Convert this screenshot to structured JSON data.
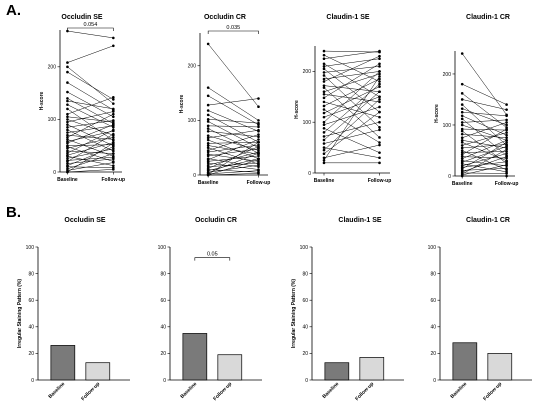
{
  "panel_labels": {
    "a": "A.",
    "b": "B."
  },
  "colors": {
    "line": "#000000",
    "baseline_bar": "#7a7a7a",
    "followup_bar": "#d9d9d9"
  },
  "chart_data": [
    {
      "type": "line",
      "panel": "A",
      "title": "Occludin SE",
      "ylabel": "H-score",
      "categories": [
        "Baseline",
        "Follow-up"
      ],
      "ylim": [
        0,
        270
      ],
      "yticks": [
        0,
        100,
        200
      ],
      "significance": "0.054",
      "pairs": [
        [
          268,
          255
        ],
        [
          208,
          240
        ],
        [
          200,
          130
        ],
        [
          190,
          138
        ],
        [
          170,
          118
        ],
        [
          152,
          105
        ],
        [
          140,
          92
        ],
        [
          135,
          120
        ],
        [
          128,
          85
        ],
        [
          120,
          60
        ],
        [
          110,
          142
        ],
        [
          105,
          95
        ],
        [
          100,
          70
        ],
        [
          95,
          115
        ],
        [
          90,
          50
        ],
        [
          85,
          98
        ],
        [
          80,
          40
        ],
        [
          75,
          88
        ],
        [
          70,
          62
        ],
        [
          66,
          110
        ],
        [
          62,
          30
        ],
        [
          58,
          78
        ],
        [
          55,
          90
        ],
        [
          50,
          52
        ],
        [
          48,
          20
        ],
        [
          45,
          66
        ],
        [
          40,
          35
        ],
        [
          36,
          80
        ],
        [
          32,
          56
        ],
        [
          30,
          12
        ],
        [
          26,
          44
        ],
        [
          22,
          28
        ],
        [
          20,
          72
        ],
        [
          16,
          25
        ],
        [
          12,
          48
        ],
        [
          10,
          8
        ],
        [
          6,
          35
        ],
        [
          3,
          18
        ],
        [
          0,
          55
        ],
        [
          0,
          5
        ]
      ]
    },
    {
      "type": "line",
      "panel": "A",
      "title": "Occludin CR",
      "ylabel": "H-score",
      "categories": [
        "Baseline",
        "Follow-up"
      ],
      "ylim": [
        0,
        260
      ],
      "yticks": [
        0,
        100,
        200
      ],
      "significance": "0.035",
      "pairs": [
        [
          240,
          125
        ],
        [
          160,
          100
        ],
        [
          145,
          92
        ],
        [
          128,
          140
        ],
        [
          118,
          80
        ],
        [
          110,
          60
        ],
        [
          102,
          95
        ],
        [
          98,
          50
        ],
        [
          90,
          88
        ],
        [
          85,
          40
        ],
        [
          80,
          70
        ],
        [
          72,
          45
        ],
        [
          68,
          82
        ],
        [
          64,
          30
        ],
        [
          58,
          60
        ],
        [
          54,
          38
        ],
        [
          50,
          20
        ],
        [
          45,
          74
        ],
        [
          42,
          55
        ],
        [
          38,
          25
        ],
        [
          35,
          48
        ],
        [
          30,
          15
        ],
        [
          28,
          65
        ],
        [
          25,
          35
        ],
        [
          22,
          10
        ],
        [
          18,
          42
        ],
        [
          15,
          22
        ],
        [
          12,
          52
        ],
        [
          10,
          5
        ],
        [
          8,
          30
        ],
        [
          5,
          18
        ],
        [
          4,
          40
        ],
        [
          2,
          8
        ],
        [
          1,
          60
        ],
        [
          0,
          3
        ],
        [
          0,
          28
        ]
      ]
    },
    {
      "type": "line",
      "panel": "A",
      "title": "Claudin-1 SE",
      "ylabel": "H-score",
      "categories": [
        "Baseline",
        "Follow-up"
      ],
      "ylim": [
        0,
        250
      ],
      "yticks": [
        0,
        100,
        200
      ],
      "pairs": [
        [
          240,
          238
        ],
        [
          232,
          180
        ],
        [
          225,
          240
        ],
        [
          215,
          150
        ],
        [
          210,
          225
        ],
        [
          205,
          120
        ],
        [
          198,
          210
        ],
        [
          192,
          90
        ],
        [
          185,
          200
        ],
        [
          180,
          230
        ],
        [
          172,
          160
        ],
        [
          168,
          70
        ],
        [
          160,
          195
        ],
        [
          155,
          140
        ],
        [
          148,
          215
        ],
        [
          140,
          110
        ],
        [
          132,
          185
        ],
        [
          125,
          60
        ],
        [
          118,
          170
        ],
        [
          110,
          150
        ],
        [
          100,
          200
        ],
        [
          95,
          130
        ],
        [
          88,
          40
        ],
        [
          80,
          175
        ],
        [
          72,
          100
        ],
        [
          65,
          160
        ],
        [
          58,
          85
        ],
        [
          50,
          30
        ],
        [
          45,
          145
        ],
        [
          38,
          120
        ],
        [
          30,
          55
        ],
        [
          25,
          190
        ],
        [
          20,
          20
        ]
      ]
    },
    {
      "type": "line",
      "panel": "A",
      "title": "Claudin-1 CR",
      "ylabel": "H-score",
      "categories": [
        "Baseline",
        "Follow-up"
      ],
      "ylim": [
        0,
        245
      ],
      "yticks": [
        0,
        100,
        200
      ],
      "pairs": [
        [
          240,
          120
        ],
        [
          180,
          140
        ],
        [
          162,
          95
        ],
        [
          150,
          130
        ],
        [
          140,
          60
        ],
        [
          132,
          100
        ],
        [
          125,
          118
        ],
        [
          118,
          80
        ],
        [
          112,
          40
        ],
        [
          105,
          110
        ],
        [
          100,
          70
        ],
        [
          92,
          90
        ],
        [
          88,
          25
        ],
        [
          82,
          75
        ],
        [
          75,
          105
        ],
        [
          70,
          55
        ],
        [
          66,
          30
        ],
        [
          60,
          85
        ],
        [
          55,
          62
        ],
        [
          50,
          12
        ],
        [
          46,
          48
        ],
        [
          42,
          92
        ],
        [
          38,
          35
        ],
        [
          34,
          70
        ],
        [
          30,
          20
        ],
        [
          27,
          58
        ],
        [
          24,
          8
        ],
        [
          20,
          44
        ],
        [
          17,
          28
        ],
        [
          14,
          66
        ],
        [
          11,
          15
        ],
        [
          8,
          38
        ],
        [
          6,
          5
        ],
        [
          4,
          52
        ],
        [
          2,
          22
        ],
        [
          0,
          0
        ]
      ]
    },
    {
      "type": "bar",
      "panel": "B",
      "title": "Occludin SE",
      "ylabel": "Irregular Staining Pattern (%)",
      "categories": [
        "Baseline",
        "Follow-up"
      ],
      "values": [
        26,
        13
      ],
      "ylim": [
        0,
        100
      ],
      "yticks": [
        0,
        20,
        40,
        60,
        80,
        100
      ]
    },
    {
      "type": "bar",
      "panel": "B",
      "title": "Occludin CR",
      "ylabel": "",
      "categories": [
        "Baseline",
        "Follow-up"
      ],
      "values": [
        35,
        19
      ],
      "ylim": [
        0,
        100
      ],
      "yticks": [
        0,
        20,
        40,
        60,
        80,
        100
      ],
      "significance": "0.05"
    },
    {
      "type": "bar",
      "panel": "B",
      "title": "Claudin-1 SE",
      "ylabel": "Irregular Staining Pattern (%)",
      "categories": [
        "Baseline",
        "Follow-up"
      ],
      "values": [
        13,
        17
      ],
      "ylim": [
        0,
        100
      ],
      "yticks": [
        0,
        20,
        40,
        60,
        80,
        100
      ]
    },
    {
      "type": "bar",
      "panel": "B",
      "title": "Claudin-1 CR",
      "ylabel": "",
      "categories": [
        "Baseline",
        "Follow-up"
      ],
      "values": [
        28,
        20
      ],
      "ylim": [
        0,
        100
      ],
      "yticks": [
        0,
        20,
        40,
        60,
        80,
        100
      ]
    }
  ]
}
